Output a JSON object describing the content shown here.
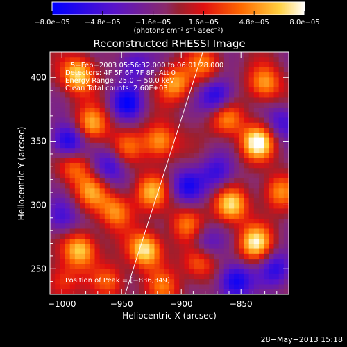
{
  "chart_data": {
    "type": "heatmap",
    "title": "Reconstructed RHESSI Image",
    "xlabel": "Heliocentric X (arcsec)",
    "ylabel": "Heliocentric Y (arcsec)",
    "xlim": [
      -1010,
      -810
    ],
    "ylim": [
      230,
      420
    ],
    "xticks": [
      -1000,
      -950,
      -900,
      -850
    ],
    "xtick_labels": [
      "−1000",
      "−950",
      "−900",
      "−850"
    ],
    "yticks": [
      250,
      300,
      350,
      400
    ],
    "ytick_labels": [
      "250",
      "300",
      "350",
      "400"
    ],
    "colorbar": {
      "ticks": [
        -8e-05,
        -4.8e-05,
        -1.6e-05,
        1.6e-05,
        4.8e-05,
        8e-05
      ],
      "tick_labels": [
        "−8.0e−05",
        "−4.8e−05",
        "−1.6e−05",
        "1.6e−05",
        "4.8e−05",
        "8.0e−05"
      ],
      "unit_label": "(photons cm⁻² s⁻¹ asec⁻²)",
      "range": [
        -8e-05,
        8e-05
      ]
    },
    "annotations": [
      "5−Feb−2003 05:56:32.000 to 06:01:28.000",
      "Detectors: 4F 5F 6F 7F 8F, Att 0",
      "Energy Range: 25.0 − 50.0 keV",
      "Clean    Total counts: 2.60E+03",
      "Position of Peak = [−836,349]"
    ],
    "peak": {
      "x": -836,
      "y": 349
    },
    "limb_line": [
      [
        -947,
        230
      ],
      [
        -882,
        420
      ]
    ],
    "hotspots": [
      {
        "x": -986,
        "y": 402,
        "v": 0.9
      },
      {
        "x": -975,
        "y": 363,
        "v": 0.75
      },
      {
        "x": -990,
        "y": 330,
        "v": 0.55
      },
      {
        "x": -975,
        "y": 310,
        "v": 0.6
      },
      {
        "x": -985,
        "y": 265,
        "v": 0.85
      },
      {
        "x": -955,
        "y": 295,
        "v": 0.65
      },
      {
        "x": -930,
        "y": 265,
        "v": 0.95
      },
      {
        "x": -925,
        "y": 310,
        "v": 0.7
      },
      {
        "x": -918,
        "y": 350,
        "v": 0.75
      },
      {
        "x": -905,
        "y": 395,
        "v": 0.7
      },
      {
        "x": -880,
        "y": 410,
        "v": 0.55
      },
      {
        "x": -862,
        "y": 368,
        "v": 0.65
      },
      {
        "x": -858,
        "y": 300,
        "v": 0.85
      },
      {
        "x": -836,
        "y": 349,
        "v": 1.0
      },
      {
        "x": -830,
        "y": 395,
        "v": 0.7
      },
      {
        "x": -838,
        "y": 270,
        "v": 0.9
      },
      {
        "x": -885,
        "y": 255,
        "v": 0.6
      },
      {
        "x": -895,
        "y": 285,
        "v": 0.55
      },
      {
        "x": -818,
        "y": 310,
        "v": 0.6
      },
      {
        "x": -960,
        "y": 240,
        "v": 0.5
      },
      {
        "x": -1000,
        "y": 240,
        "v": 0.45
      },
      {
        "x": -945,
        "y": 345,
        "v": 0.45
      },
      {
        "x": -915,
        "y": 235,
        "v": 0.5
      }
    ],
    "coldspots": [
      {
        "x": -995,
        "y": 350,
        "v": -0.8
      },
      {
        "x": -945,
        "y": 380,
        "v": -0.7
      },
      {
        "x": -960,
        "y": 330,
        "v": -0.55
      },
      {
        "x": -895,
        "y": 315,
        "v": -0.6
      },
      {
        "x": -870,
        "y": 385,
        "v": -0.75
      },
      {
        "x": -870,
        "y": 325,
        "v": -0.55
      },
      {
        "x": -855,
        "y": 240,
        "v": -0.8
      },
      {
        "x": -820,
        "y": 250,
        "v": -0.6
      },
      {
        "x": -880,
        "y": 270,
        "v": -0.45
      },
      {
        "x": -1000,
        "y": 290,
        "v": -0.5
      },
      {
        "x": -940,
        "y": 410,
        "v": -0.5
      },
      {
        "x": -815,
        "y": 365,
        "v": -0.5
      }
    ]
  },
  "footer_date": "28−May−2013 15:18",
  "colors": {
    "background": "#000000",
    "axis": "#ffffff",
    "limb": "#ffffff"
  }
}
